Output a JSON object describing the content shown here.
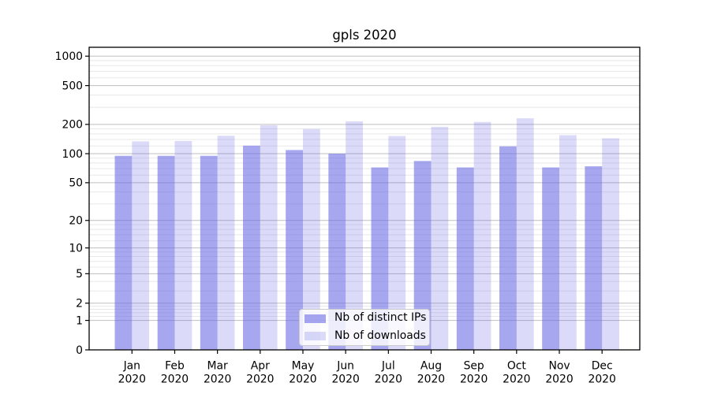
{
  "chart_data": {
    "type": "bar",
    "title": "gpls 2020",
    "categories": [
      "Jan 2020",
      "Feb 2020",
      "Mar 2020",
      "Apr 2020",
      "May 2020",
      "Jun 2020",
      "Jul 2020",
      "Aug 2020",
      "Sep 2020",
      "Oct 2020",
      "Nov 2020",
      "Dec 2020"
    ],
    "series": [
      {
        "name": "Nb of distinct IPs",
        "color": "rgba(104,104,228,0.58)",
        "values": [
          95,
          95,
          95,
          121,
          109,
          100,
          72,
          84,
          72,
          119,
          72,
          74
        ]
      },
      {
        "name": "Nb of downloads",
        "color": "rgba(104,104,228,0.24)",
        "values": [
          134,
          135,
          153,
          196,
          179,
          215,
          152,
          189,
          212,
          231,
          155,
          144
        ]
      }
    ],
    "xlabel": "",
    "ylabel": "",
    "yscale": "log1p",
    "ylim": [
      0,
      1231
    ],
    "yticks": [
      0,
      1,
      2,
      5,
      10,
      20,
      50,
      100,
      200,
      500,
      1000
    ],
    "grid": true,
    "legend_position": "lower center"
  }
}
